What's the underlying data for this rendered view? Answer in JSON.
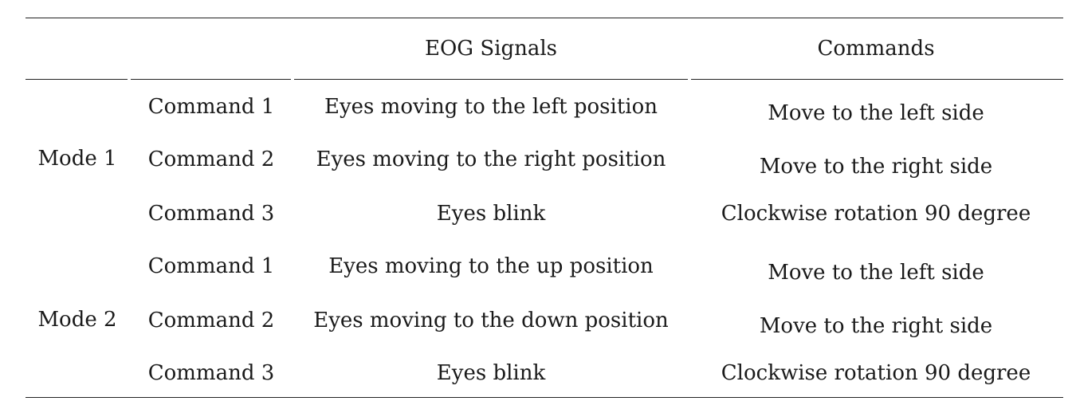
{
  "table": {
    "headers": [
      "",
      "",
      "EOG Signals",
      "Commands"
    ],
    "modes": [
      {
        "label": "Mode 1",
        "rows": [
          {
            "command": "Command 1",
            "signal": "Eyes moving to the left position",
            "action": "Move to the left side"
          },
          {
            "command": "Command 2",
            "signal": "Eyes moving to the right position",
            "action": "Move to the right side"
          },
          {
            "command": "Command 3",
            "signal": "Eyes blink",
            "action": "Clockwise rotation 90 degree"
          }
        ]
      },
      {
        "label": "Mode 2",
        "rows": [
          {
            "command": "Command 1",
            "signal": "Eyes moving to the up position",
            "action": "Move to the left side"
          },
          {
            "command": "Command 2",
            "signal": "Eyes moving to the down position",
            "action": "Move to the right side"
          },
          {
            "command": "Command 3",
            "signal": "Eyes blink",
            "action": "Clockwise rotation 90 degree"
          }
        ]
      }
    ]
  }
}
